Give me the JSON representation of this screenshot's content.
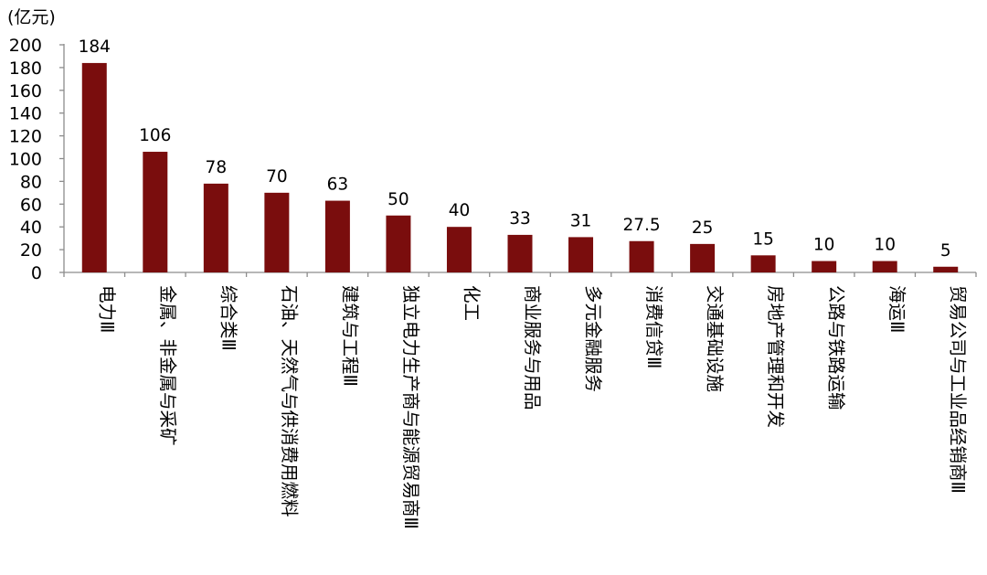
{
  "chart_data": {
    "type": "bar",
    "unit_label": "(亿元)",
    "categories": [
      "电力Ⅲ",
      "金属、非金属与采矿",
      "综合类Ⅲ",
      "石油、天然气与供消费用燃料",
      "建筑与工程Ⅲ",
      "独立电力生产商与能源贸易商Ⅲ",
      "化工",
      "商业服务与用品",
      "多元金融服务",
      "消费信贷Ⅲ",
      "交通基础设施",
      "房地产管理和开发",
      "公路与铁路运输",
      "海运Ⅲ",
      "贸易公司与工业品经销商Ⅲ"
    ],
    "values": [
      184,
      106,
      78,
      70,
      63,
      50,
      40,
      33,
      31,
      27.5,
      25,
      15,
      10,
      10,
      5
    ],
    "value_labels": [
      "184",
      "106",
      "78",
      "70",
      "63",
      "50",
      "40",
      "33",
      "31",
      "27.5",
      "25",
      "15",
      "10",
      "10",
      "5"
    ],
    "ylim": [
      0,
      200
    ],
    "yticks": [
      0,
      20,
      40,
      60,
      80,
      100,
      120,
      140,
      160,
      180,
      200
    ],
    "grid": false,
    "bar_color": "#7a0d0d",
    "axis_color": "#8c8c8c"
  }
}
